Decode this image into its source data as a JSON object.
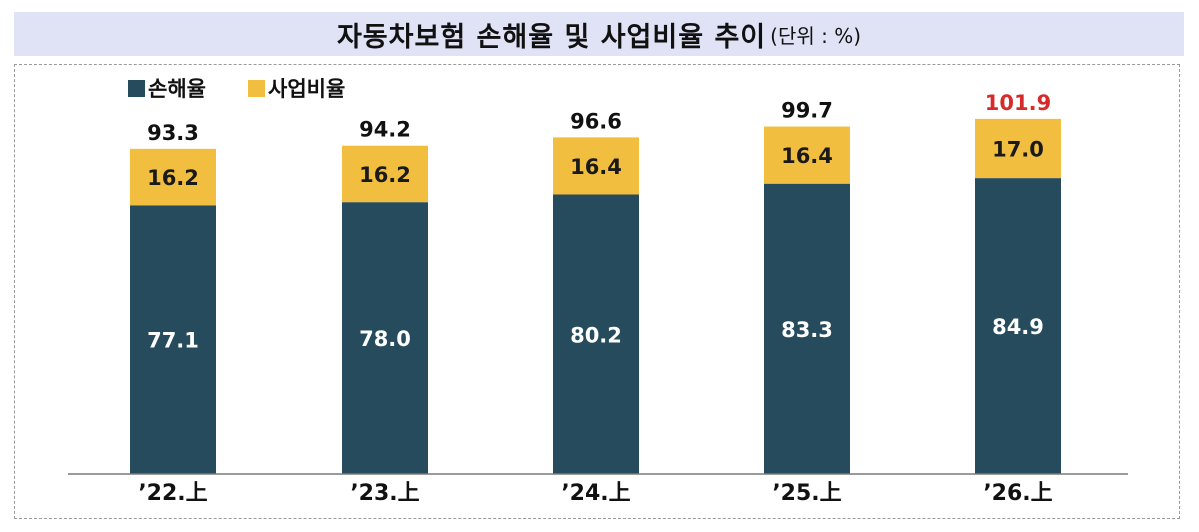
{
  "header": {
    "title": "자동차보험 손해율 및 사업비율 추이",
    "unit": "(단위 : %)"
  },
  "chart_data": {
    "type": "bar",
    "stacked": true,
    "categories": [
      "’22.上",
      "’23.上",
      "’24.上",
      "’25.上",
      "’26.上"
    ],
    "series": [
      {
        "name": "손해율",
        "color": "#264b5d",
        "values": [
          77.1,
          78.0,
          80.2,
          83.3,
          84.9
        ]
      },
      {
        "name": "사업비율",
        "color": "#f1be3f",
        "values": [
          16.2,
          16.2,
          16.4,
          16.4,
          17.0
        ]
      }
    ],
    "totals": [
      93.3,
      94.2,
      96.6,
      99.7,
      101.9
    ],
    "total_labels": [
      "93.3",
      "94.2",
      "96.6",
      "99.7",
      "101.9"
    ],
    "value_labels": [
      [
        "77.1",
        "78.0",
        "80.2",
        "83.3",
        "84.9"
      ],
      [
        "16.2",
        "16.2",
        "16.4",
        "16.4",
        "17.0"
      ]
    ],
    "highlight_total_color": "#d62b2b",
    "highlight_index": 4,
    "legend_position": "top-left",
    "grid": false
  }
}
